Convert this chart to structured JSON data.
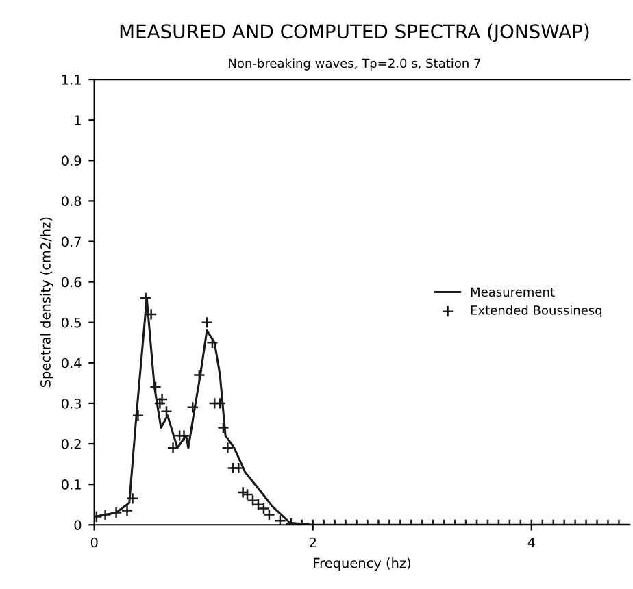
{
  "chart_data": {
    "type": "line",
    "title": "MEASURED AND COMPUTED SPECTRA (JONSWAP)",
    "subtitle": "Non-breaking waves, Tp=2.0 s, Station 7",
    "xlabel": "Frequency (hz)",
    "ylabel": "Spectral density (cm2/hz)",
    "xlim": [
      0,
      4.9
    ],
    "xticks": [
      0,
      2,
      4
    ],
    "ylim": [
      0,
      1.1
    ],
    "yticks": [
      0,
      0.1,
      0.2,
      0.3,
      0.4,
      0.5,
      0.6,
      0.7,
      0.8,
      0.9,
      1,
      1.1
    ],
    "legend": "right",
    "grid": false,
    "series": [
      {
        "name": "Measurement",
        "color": "#1a1a1a",
        "marker": "none",
        "x": [
          0,
          0.1,
          0.2,
          0.32,
          0.385,
          0.48,
          0.55,
          0.61,
          0.67,
          0.76,
          0.84,
          0.86,
          0.92,
          0.97,
          1.03,
          1.1,
          1.15,
          1.2,
          1.28,
          1.38,
          1.5,
          1.63,
          1.79,
          2,
          2.5,
          3,
          3.5,
          4,
          4.5,
          4.9
        ],
        "values": [
          0.02,
          0.025,
          0.03,
          0.054,
          0.27,
          0.56,
          0.34,
          0.24,
          0.27,
          0.19,
          0.22,
          0.19,
          0.29,
          0.37,
          0.48,
          0.45,
          0.37,
          0.22,
          0.19,
          0.13,
          0.09,
          0.045,
          0.005,
          0,
          0,
          0,
          0,
          0,
          0,
          0
        ]
      },
      {
        "name": "Extended Boussinesq",
        "color": "#1a1a1a",
        "type": "scatter",
        "marker": "cross",
        "x": [
          0.02,
          0.1,
          0.2,
          0.3,
          0.35,
          0.4,
          0.47,
          0.52,
          0.56,
          0.6,
          0.62,
          0.66,
          0.72,
          0.78,
          0.82,
          0.9,
          0.96,
          1.03,
          1.08,
          1.1,
          1.15,
          1.18,
          1.22,
          1.27,
          1.32,
          1.36,
          1.4,
          1.45,
          1.5,
          1.55,
          1.6,
          1.7,
          1.8,
          1.9,
          2,
          2.1,
          2.2,
          2.3,
          2.4,
          2.5,
          2.6,
          2.7,
          2.8,
          2.9,
          3,
          3.1,
          3.2,
          3.3,
          3.4,
          3.5,
          3.6,
          3.7,
          3.8,
          3.9,
          4,
          4.1,
          4.2,
          4.3,
          4.4,
          4.5,
          4.6,
          4.7,
          4.8
        ],
        "values": [
          0.02,
          0.025,
          0.03,
          0.035,
          0.065,
          0.27,
          0.56,
          0.52,
          0.34,
          0.3,
          0.31,
          0.28,
          0.19,
          0.22,
          0.22,
          0.29,
          0.37,
          0.5,
          0.45,
          0.3,
          0.3,
          0.24,
          0.19,
          0.14,
          0.14,
          0.08,
          0.075,
          0.06,
          0.05,
          0.04,
          0.025,
          0.01,
          0.003,
          0,
          0,
          0,
          0,
          0,
          0,
          0,
          0,
          0,
          0,
          0,
          0,
          0,
          0,
          0,
          0,
          0,
          0,
          0,
          0,
          0,
          0,
          0,
          0,
          0,
          0,
          0,
          0,
          0,
          0
        ]
      }
    ]
  }
}
